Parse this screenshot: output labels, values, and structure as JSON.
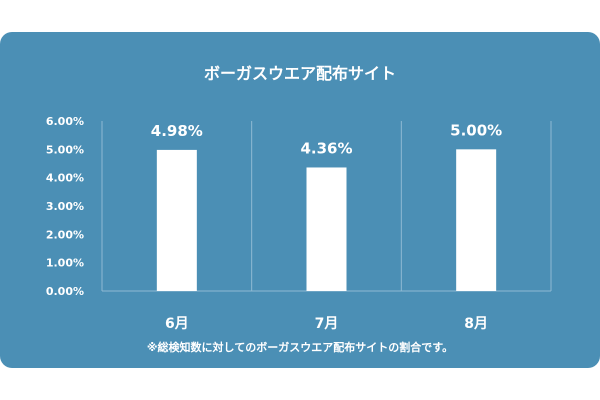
{
  "chart_data": {
    "type": "bar",
    "title": "ボーガスウエア配布サイト",
    "categories": [
      "6月",
      "7月",
      "8月"
    ],
    "values": [
      4.98,
      4.36,
      5.0
    ],
    "data_labels": [
      "4.98%",
      "4.36%",
      "5.00%"
    ],
    "ylim": [
      0,
      6
    ],
    "yticks": [
      0,
      1,
      2,
      3,
      4,
      5,
      6
    ],
    "ytick_labels": [
      "0.00%",
      "1.00%",
      "2.00%",
      "3.00%",
      "4.00%",
      "5.00%",
      "6.00%"
    ],
    "xlabel": "",
    "ylabel": "",
    "grid": "vertical separators",
    "legend": "none",
    "footnote": "※総検知数に対してのボーガスウエア配布サイトの割合です。",
    "colors": {
      "background": "#4b8fb5",
      "bar": "#ffffff",
      "text": "#ffffff",
      "grid": "#8fbad3"
    }
  }
}
